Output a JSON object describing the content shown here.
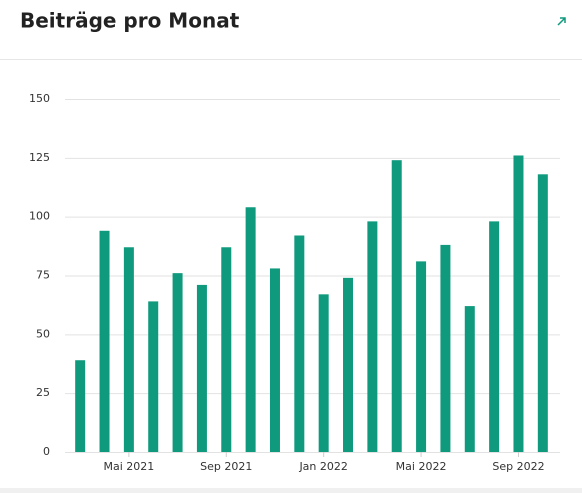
{
  "chart_data": {
    "type": "bar",
    "title": "Beiträge pro Monat",
    "categories": [
      null,
      null,
      "Mai 2021",
      null,
      null,
      null,
      "Sep 2021",
      null,
      null,
      null,
      "Jan 2022",
      null,
      null,
      null,
      "Mai 2022",
      null,
      null,
      null,
      "Sep 2022",
      null
    ],
    "values": [
      39,
      94,
      87,
      64,
      76,
      71,
      87,
      104,
      78,
      92,
      67,
      74,
      98,
      124,
      81,
      88,
      62,
      98,
      126,
      118
    ],
    "color": "#0f9a7e",
    "ylim": [
      0,
      150
    ],
    "yticks": [
      0,
      25,
      50,
      75,
      100,
      125,
      150
    ],
    "grid": true
  }
}
